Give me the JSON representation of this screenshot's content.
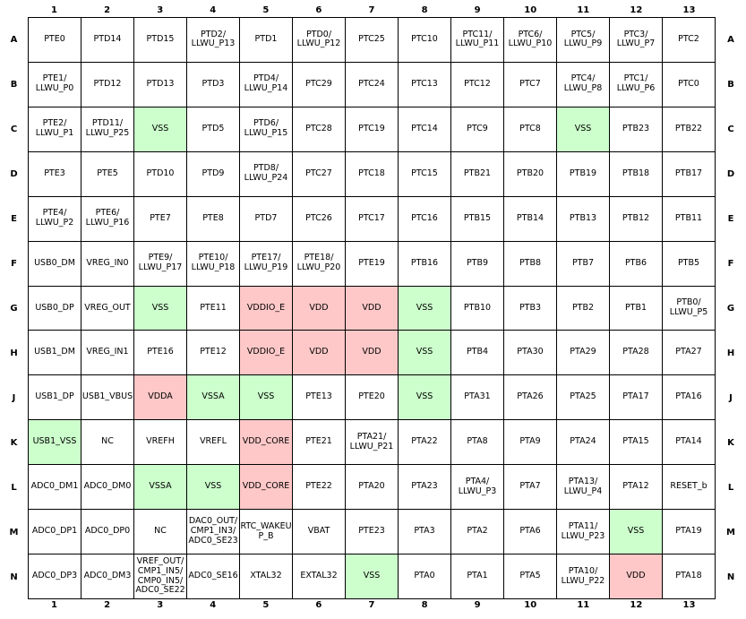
{
  "columns": [
    "1",
    "2",
    "3",
    "4",
    "5",
    "6",
    "7",
    "8",
    "9",
    "10",
    "11",
    "12",
    "13"
  ],
  "rows": [
    "A",
    "B",
    "C",
    "D",
    "E",
    "F",
    "G",
    "H",
    "J",
    "K",
    "L",
    "M",
    "N"
  ],
  "colors": {
    "power": "#ffc8c8",
    "ground": "#ccffcc"
  },
  "pins": [
    [
      {
        "label": "PTE0"
      },
      {
        "label": "PTD14"
      },
      {
        "label": "PTD15"
      },
      {
        "label": "PTD2/\nLLWU_P13"
      },
      {
        "label": "PTD1"
      },
      {
        "label": "PTD0/\nLLWU_P12"
      },
      {
        "label": "PTC25"
      },
      {
        "label": "PTC10"
      },
      {
        "label": "PTC11/\nLLWU_P11"
      },
      {
        "label": "PTC6/\nLLWU_P10"
      },
      {
        "label": "PTC5/\nLLWU_P9"
      },
      {
        "label": "PTC3/\nLLWU_P7"
      },
      {
        "label": "PTC2"
      }
    ],
    [
      {
        "label": "PTE1/\nLLWU_P0"
      },
      {
        "label": "PTD12"
      },
      {
        "label": "PTD13"
      },
      {
        "label": "PTD3"
      },
      {
        "label": "PTD4/\nLLWU_P14"
      },
      {
        "label": "PTC29"
      },
      {
        "label": "PTC24"
      },
      {
        "label": "PTC13"
      },
      {
        "label": "PTC12"
      },
      {
        "label": "PTC7"
      },
      {
        "label": "PTC4/\nLLWU_P8"
      },
      {
        "label": "PTC1/\nLLWU_P6"
      },
      {
        "label": "PTC0"
      }
    ],
    [
      {
        "label": "PTE2/\nLLWU_P1"
      },
      {
        "label": "PTD11/\nLLWU_P25"
      },
      {
        "label": "VSS",
        "type": "ground"
      },
      {
        "label": "PTD5"
      },
      {
        "label": "PTD6/\nLLWU_P15"
      },
      {
        "label": "PTC28"
      },
      {
        "label": "PTC19"
      },
      {
        "label": "PTC14"
      },
      {
        "label": "PTC9"
      },
      {
        "label": "PTC8"
      },
      {
        "label": "VSS",
        "type": "ground"
      },
      {
        "label": "PTB23"
      },
      {
        "label": "PTB22"
      }
    ],
    [
      {
        "label": "PTE3"
      },
      {
        "label": "PTE5"
      },
      {
        "label": "PTD10"
      },
      {
        "label": "PTD9"
      },
      {
        "label": "PTD8/\nLLWU_P24"
      },
      {
        "label": "PTC27"
      },
      {
        "label": "PTC18"
      },
      {
        "label": "PTC15"
      },
      {
        "label": "PTB21"
      },
      {
        "label": "PTB20"
      },
      {
        "label": "PTB19"
      },
      {
        "label": "PTB18"
      },
      {
        "label": "PTB17"
      }
    ],
    [
      {
        "label": "PTE4/\nLLWU_P2"
      },
      {
        "label": "PTE6/\nLLWU_P16"
      },
      {
        "label": "PTE7"
      },
      {
        "label": "PTE8"
      },
      {
        "label": "PTD7"
      },
      {
        "label": "PTC26"
      },
      {
        "label": "PTC17"
      },
      {
        "label": "PTC16"
      },
      {
        "label": "PTB15"
      },
      {
        "label": "PTB14"
      },
      {
        "label": "PTB13"
      },
      {
        "label": "PTB12"
      },
      {
        "label": "PTB11"
      }
    ],
    [
      {
        "label": "USB0_DM"
      },
      {
        "label": "VREG_IN0"
      },
      {
        "label": "PTE9/\nLLWU_P17"
      },
      {
        "label": "PTE10/\nLLWU_P18"
      },
      {
        "label": "PTE17/\nLLWU_P19"
      },
      {
        "label": "PTE18/\nLLWU_P20"
      },
      {
        "label": "PTE19"
      },
      {
        "label": "PTB16"
      },
      {
        "label": "PTB9"
      },
      {
        "label": "PTB8"
      },
      {
        "label": "PTB7"
      },
      {
        "label": "PTB6"
      },
      {
        "label": "PTB5"
      }
    ],
    [
      {
        "label": "USB0_DP"
      },
      {
        "label": "VREG_OUT"
      },
      {
        "label": "VSS",
        "type": "ground"
      },
      {
        "label": "PTE11"
      },
      {
        "label": "VDDIO_E",
        "type": "power"
      },
      {
        "label": "VDD",
        "type": "power"
      },
      {
        "label": "VDD",
        "type": "power"
      },
      {
        "label": "VSS",
        "type": "ground"
      },
      {
        "label": "PTB10"
      },
      {
        "label": "PTB3"
      },
      {
        "label": "PTB2"
      },
      {
        "label": "PTB1"
      },
      {
        "label": "PTB0/\nLLWU_P5"
      }
    ],
    [
      {
        "label": "USB1_DM"
      },
      {
        "label": "VREG_IN1"
      },
      {
        "label": "PTE16"
      },
      {
        "label": "PTE12"
      },
      {
        "label": "VDDIO_E",
        "type": "power"
      },
      {
        "label": "VDD",
        "type": "power"
      },
      {
        "label": "VDD",
        "type": "power"
      },
      {
        "label": "VSS",
        "type": "ground"
      },
      {
        "label": "PTB4"
      },
      {
        "label": "PTA30"
      },
      {
        "label": "PTA29"
      },
      {
        "label": "PTA28"
      },
      {
        "label": "PTA27"
      }
    ],
    [
      {
        "label": "USB1_DP"
      },
      {
        "label": "USB1_VBUS"
      },
      {
        "label": "VDDA",
        "type": "power"
      },
      {
        "label": "VSSA",
        "type": "ground"
      },
      {
        "label": "VSS",
        "type": "ground"
      },
      {
        "label": "PTE13"
      },
      {
        "label": "PTE20"
      },
      {
        "label": "VSS",
        "type": "ground"
      },
      {
        "label": "PTA31"
      },
      {
        "label": "PTA26"
      },
      {
        "label": "PTA25"
      },
      {
        "label": "PTA17"
      },
      {
        "label": "PTA16"
      }
    ],
    [
      {
        "label": "USB1_VSS",
        "type": "ground"
      },
      {
        "label": "NC"
      },
      {
        "label": "VREFH"
      },
      {
        "label": "VREFL"
      },
      {
        "label": "VDD_CORE",
        "type": "power"
      },
      {
        "label": "PTE21"
      },
      {
        "label": "PTA21/\nLLWU_P21"
      },
      {
        "label": "PTA22"
      },
      {
        "label": "PTA8"
      },
      {
        "label": "PTA9"
      },
      {
        "label": "PTA24"
      },
      {
        "label": "PTA15"
      },
      {
        "label": "PTA14"
      }
    ],
    [
      {
        "label": "ADC0_DM1"
      },
      {
        "label": "ADC0_DM0"
      },
      {
        "label": "VSSA",
        "type": "ground"
      },
      {
        "label": "VSS",
        "type": "ground"
      },
      {
        "label": "VDD_CORE",
        "type": "power"
      },
      {
        "label": "PTE22"
      },
      {
        "label": "PTA20"
      },
      {
        "label": "PTA23"
      },
      {
        "label": "PTA4/\nLLWU_P3"
      },
      {
        "label": "PTA7"
      },
      {
        "label": "PTA13/\nLLWU_P4"
      },
      {
        "label": "PTA12"
      },
      {
        "label": "RESET_b"
      }
    ],
    [
      {
        "label": "ADC0_DP1"
      },
      {
        "label": "ADC0_DP0"
      },
      {
        "label": "NC"
      },
      {
        "label": "DAC0_OUT/\nCMP1_IN3/\nADC0_SE23"
      },
      {
        "label": "RTC_WAKEU\nP_B"
      },
      {
        "label": "VBAT"
      },
      {
        "label": "PTE23"
      },
      {
        "label": "PTA3"
      },
      {
        "label": "PTA2"
      },
      {
        "label": "PTA6"
      },
      {
        "label": "PTA11/\nLLWU_P23"
      },
      {
        "label": "VSS",
        "type": "ground"
      },
      {
        "label": "PTA19"
      }
    ],
    [
      {
        "label": "ADC0_DP3"
      },
      {
        "label": "ADC0_DM3"
      },
      {
        "label": "VREF_OUT/\nCMP1_IN5/\nCMP0_IN5/\nADC0_SE22"
      },
      {
        "label": "ADC0_SE16"
      },
      {
        "label": "XTAL32"
      },
      {
        "label": "EXTAL32"
      },
      {
        "label": "VSS",
        "type": "ground"
      },
      {
        "label": "PTA0"
      },
      {
        "label": "PTA1"
      },
      {
        "label": "PTA5"
      },
      {
        "label": "PTA10/\nLLWU_P22"
      },
      {
        "label": "VDD",
        "type": "power"
      },
      {
        "label": "PTA18"
      }
    ]
  ]
}
